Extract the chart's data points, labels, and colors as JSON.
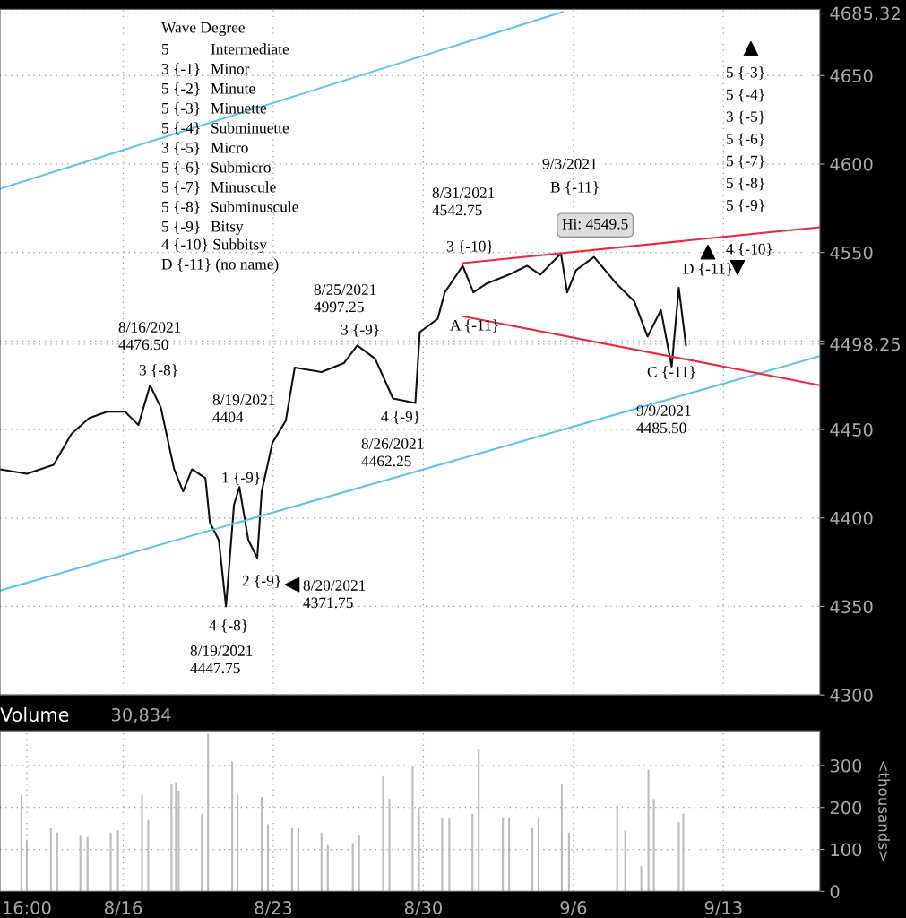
{
  "chart_data": [
    {
      "type": "line",
      "xlim": [
        "2021-08-10T06:00",
        "2021-09-17T12:00"
      ],
      "xticks": [
        {
          "value": "2021-08-16",
          "label": null
        },
        {
          "value": "2021-08-23",
          "label": null
        },
        {
          "value": "2021-08-30",
          "label": null
        },
        {
          "value": "2021-09-06",
          "label": null
        },
        {
          "value": "2021-09-13",
          "label": null
        }
      ],
      "ylim": [
        4300,
        4687.5
      ],
      "yticks": [
        4300,
        4350,
        4400,
        4450,
        {
          "value": 4500,
          "label": null
        },
        4550,
        4600,
        4650,
        {
          "value": 4685.32,
          "label": "4685.32"
        },
        {
          "value": 4498.25,
          "label": "4498.25"
        }
      ],
      "tick_labels": "y",
      "grid": true,
      "legend": false,
      "line_style": "solid",
      "marker": "none",
      "series": [
        {
          "color": "#111111",
          "x": [
            "2021-08-10T06:00",
            "2021-08-11T12:00",
            "2021-08-12T18:00",
            "2021-08-13T14:00",
            "2021-08-14T10:00",
            "2021-08-15T06:00",
            "2021-08-16T02:00",
            "2021-08-16T17:00",
            "2021-08-17T06:00",
            "2021-08-17T18:00",
            "2021-08-18T09:00",
            "2021-08-18T19:00",
            "2021-08-19T05:00",
            "2021-08-19T20:00",
            "2021-08-20T01:00",
            "2021-08-20T11:00",
            "2021-08-20T19:00",
            "2021-08-21T04:00",
            "2021-08-21T10:00",
            "2021-08-21T20:00",
            "2021-08-22T06:00",
            "2021-08-22T11:00",
            "2021-08-22T23:00",
            "2021-08-23T14:00",
            "2021-08-24T00:00",
            "2021-08-25T06:00",
            "2021-08-26T07:00",
            "2021-08-26T22:00",
            "2021-08-27T18:00",
            "2021-08-28T14:00",
            "2021-08-29T15:00",
            "2021-08-29T20:00",
            "2021-08-30T16:00",
            "2021-08-31T00:00",
            "2021-08-31T20:00",
            "2021-09-01T08:00",
            "2021-09-01T23:00",
            "2021-09-03T00:00",
            "2021-09-03T20:00",
            "2021-09-04T11:00",
            "2021-09-05T10:00",
            "2021-09-05T17:00",
            "2021-09-06T03:00",
            "2021-09-06T23:00",
            "2021-09-08T00:00",
            "2021-09-08T20:00",
            "2021-09-09T11:00",
            "2021-09-10T02:00",
            "2021-09-10T14:00",
            "2021-09-10T22:00",
            "2021-09-11T06:00"
          ],
          "values": [
            4427.5,
            4425,
            4430,
            4447.5,
            4456.5,
            4460,
            4460,
            4452.5,
            4475,
            4462.5,
            4427.5,
            4415,
            4427.5,
            4422.5,
            4397.5,
            4387.5,
            4350,
            4407.5,
            4417.5,
            4387.5,
            4377.5,
            4415,
            4442.5,
            4455,
            4485,
            4482.5,
            4487.5,
            4497.5,
            4490,
            4467.5,
            4465,
            4505,
            4512.5,
            4527.5,
            4542.5,
            4527.5,
            4532.5,
            4537.5,
            4542.5,
            4537.5,
            4549.5,
            4527.5,
            4540,
            4547.5,
            4532.5,
            4522.5,
            4502.5,
            4517.5,
            4485.5,
            4530,
            4497.5
          ]
        },
        {
          "color": "#5ec4f0",
          "x": [
            "2021-08-10T06:00",
            "2021-09-05T12:00"
          ],
          "values": [
            4586,
            4686
          ]
        },
        {
          "color": "#5ec4f0",
          "x": [
            "2021-08-10T06:00",
            "2021-09-17T12:00"
          ],
          "values": [
            4359,
            4491.5
          ]
        },
        {
          "color": "#f0283c",
          "x": [
            "2021-08-31T20:00",
            "2021-09-17T12:00"
          ],
          "values": [
            4544,
            4564.3
          ]
        },
        {
          "color": "#f0283c",
          "x": [
            "2021-08-31T20:00",
            "2021-09-17T12:00"
          ],
          "values": [
            4514,
            4475
          ]
        }
      ],
      "annotations": [
        "Wave Degree",
        "5",
        "3 {-1}",
        "5 {-2}",
        "5 {-3}",
        "5 {-4}",
        "3 {-5}",
        "5 {-6}",
        "5 {-7}",
        "5 {-8}",
        "5 {-9}",
        "Intermediate",
        "Minor",
        "Minute",
        "Minuette",
        "Subminuette",
        "Micro",
        "Submicro",
        "Minuscule",
        "Subminuscule",
        "Bitsy",
        "4 {-10} Subbitsy",
        "D {-11} (no name)",
        "8/16/2021\n4476.50",
        "3 {-8}",
        "8/19/2021\n4404",
        "1 {-9}",
        "2 {-9}",
        "4 {-8}",
        "8/19/2021\n4447.75",
        "8/20/2021\n4371.75",
        "8/25/2021\n4997.25",
        "3 {-9}",
        "4 {-9}",
        "8/26/2021\n4462.25",
        "8/31/2021\n4542.75",
        "3 {-10}",
        "A {-11}",
        "9/3/2021",
        "B {-11}",
        "Hi: 4549.5",
        "C {-11}",
        "9/9/2021\n4485.50",
        "D {-11}",
        "4 {-10}",
        "5 {-3}",
        "5 {-4}",
        "3 {-5}",
        "5 {-6}",
        "5 {-7}",
        "5 {-8}",
        "5 {-9}"
      ]
    },
    {
      "type": "bar",
      "title": "Volume",
      "annotations": [
        "30,834"
      ],
      "ylabel": "<thousands>",
      "color": "#bdbdbd",
      "grid": true,
      "legend": false,
      "xlim": [
        "2021-08-10T06:00",
        "2021-09-17T12:00"
      ],
      "xticks": [
        {
          "value": "2021-08-11T12:00",
          "label": "16:00"
        },
        {
          "value": "2021-08-16",
          "label": "8/16"
        },
        {
          "value": "2021-08-23",
          "label": "8/23"
        },
        {
          "value": "2021-08-30",
          "label": "8/30"
        },
        {
          "value": "2021-09-06",
          "label": "9/6"
        },
        {
          "value": "2021-09-13",
          "label": "9/13"
        }
      ],
      "ylim": [
        0,
        383
      ],
      "yticks": [
        0,
        100,
        200,
        300
      ],
      "x": [
        "2021-08-11T06:00",
        "2021-08-11T12:00",
        "2021-08-12T15:00",
        "2021-08-12T22:00",
        "2021-08-14T00:00",
        "2021-08-14T08:00",
        "2021-08-15T10:00",
        "2021-08-15T18:00",
        "2021-08-16T21:00",
        "2021-08-17T04:00",
        "2021-08-18T06:00",
        "2021-08-18T11:00",
        "2021-08-18T14:00",
        "2021-08-19T16:00",
        "2021-08-19T23:00",
        "2021-08-21T02:00",
        "2021-08-21T08:00",
        "2021-08-22T11:00",
        "2021-08-22T18:00",
        "2021-08-23T21:00",
        "2021-08-24T04:00",
        "2021-08-25T06:00",
        "2021-08-25T13:00",
        "2021-08-26T17:00",
        "2021-08-27T00:00",
        "2021-08-28T03:00",
        "2021-08-28T10:00",
        "2021-08-29T12:00",
        "2021-08-29T19:00",
        "2021-08-30T21:00",
        "2021-08-31T05:00",
        "2021-09-01T07:00",
        "2021-09-01T14:00",
        "2021-09-02T17:00",
        "2021-09-03T00:00",
        "2021-09-04T02:00",
        "2021-09-04T09:00",
        "2021-09-05T11:00",
        "2021-09-05T19:00",
        "2021-09-08T01:00",
        "2021-09-08T10:00",
        "2021-09-09T04:00",
        "2021-09-09T12:00",
        "2021-09-09T18:00",
        "2021-09-10T22:00",
        "2021-09-11T03:00"
      ],
      "values": [
        230,
        120,
        150,
        140,
        135,
        130,
        140,
        145,
        230,
        170,
        255,
        260,
        240,
        185,
        375,
        310,
        230,
        225,
        160,
        150,
        150,
        140,
        110,
        115,
        135,
        275,
        220,
        300,
        200,
        175,
        175,
        185,
        340,
        175,
        175,
        150,
        175,
        255,
        140,
        205,
        145,
        60,
        290,
        220,
        165,
        185
      ]
    }
  ]
}
